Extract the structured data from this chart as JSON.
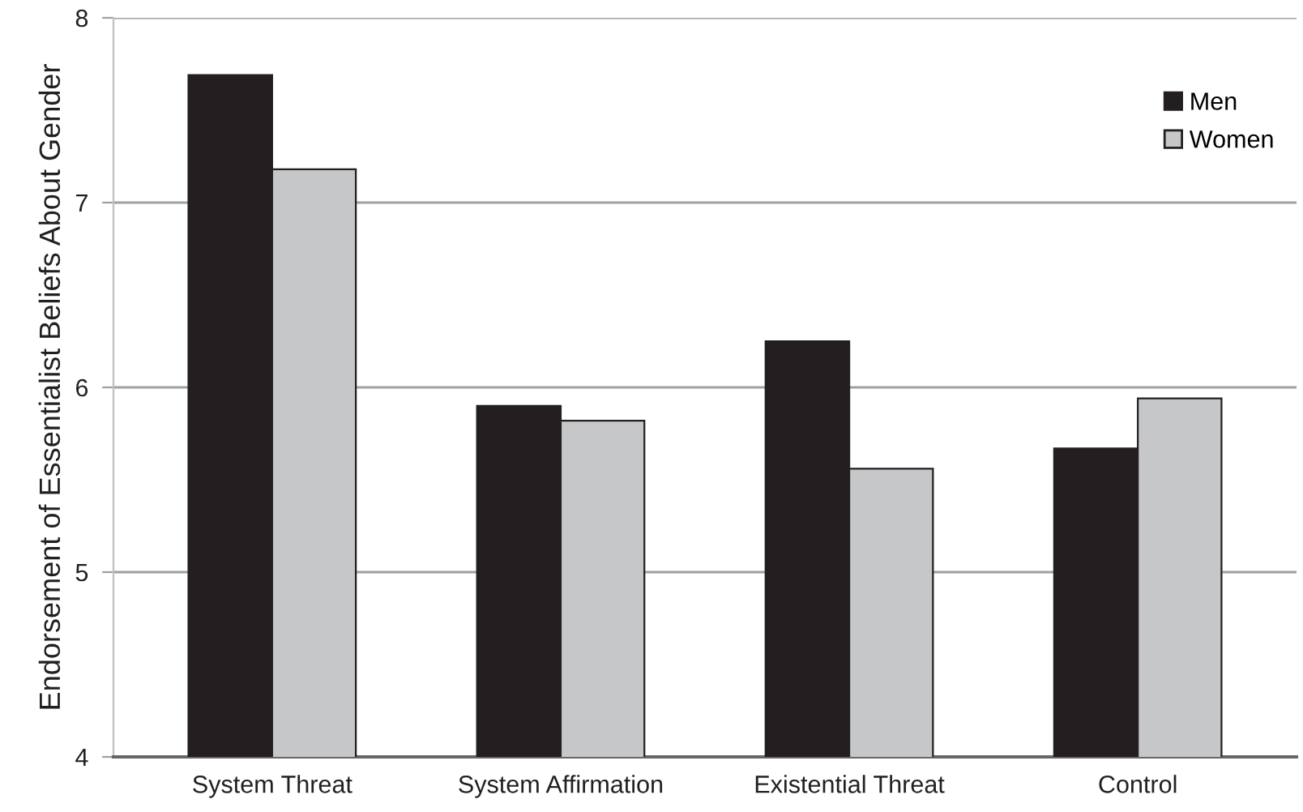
{
  "chart_data": {
    "type": "bar",
    "ylabel": "Endorsement of Essentialist Beliefs About Gender",
    "categories": [
      "System Threat",
      "System Affirmation",
      "Existential Threat",
      "Control"
    ],
    "series": [
      {
        "name": "Men",
        "color": "#231f20",
        "values": [
          7.69,
          5.9,
          6.25,
          5.67
        ]
      },
      {
        "name": "Women",
        "color": "#c6c7c9",
        "values": [
          7.18,
          5.82,
          5.56,
          5.94
        ]
      }
    ],
    "ylim": [
      4,
      8
    ],
    "yticks": [
      4,
      5,
      6,
      7,
      8
    ],
    "grid": "y",
    "legend": "top right"
  }
}
